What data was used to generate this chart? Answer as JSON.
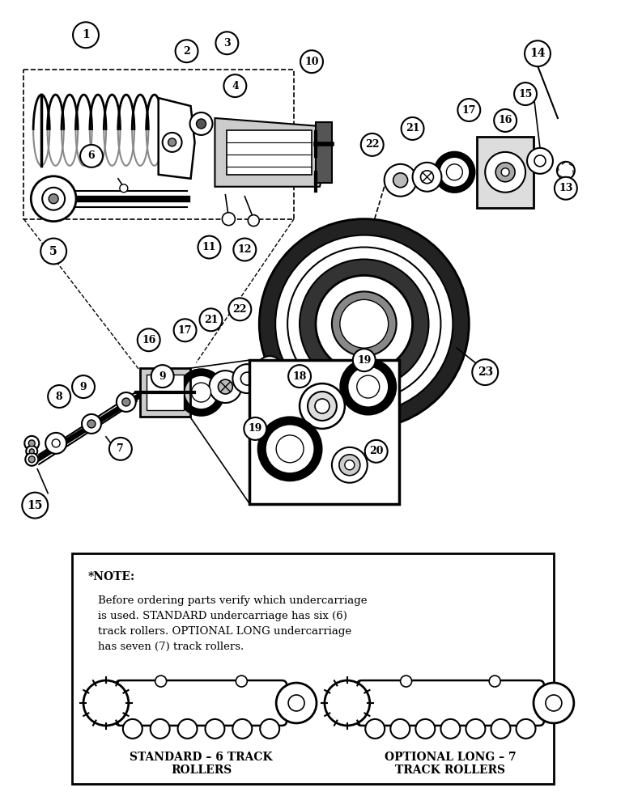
{
  "bg_color": "#ffffff",
  "lc": "#000000",
  "fig_w": 7.72,
  "fig_h": 10.0,
  "note_text_line1": "*NOTE:",
  "note_text_body": "Before ordering parts verify which undercarriage\nis used. STANDARD undercarriage has six (6)\ntrack rollers. OPTIONAL LONG undercarriage\nhas seven (7) track rollers.",
  "label_standard": "STANDARD – 6 TRACK\nROLLERS",
  "label_optional": "OPTIONAL LONG – 7\nTRACK ROLLERS"
}
